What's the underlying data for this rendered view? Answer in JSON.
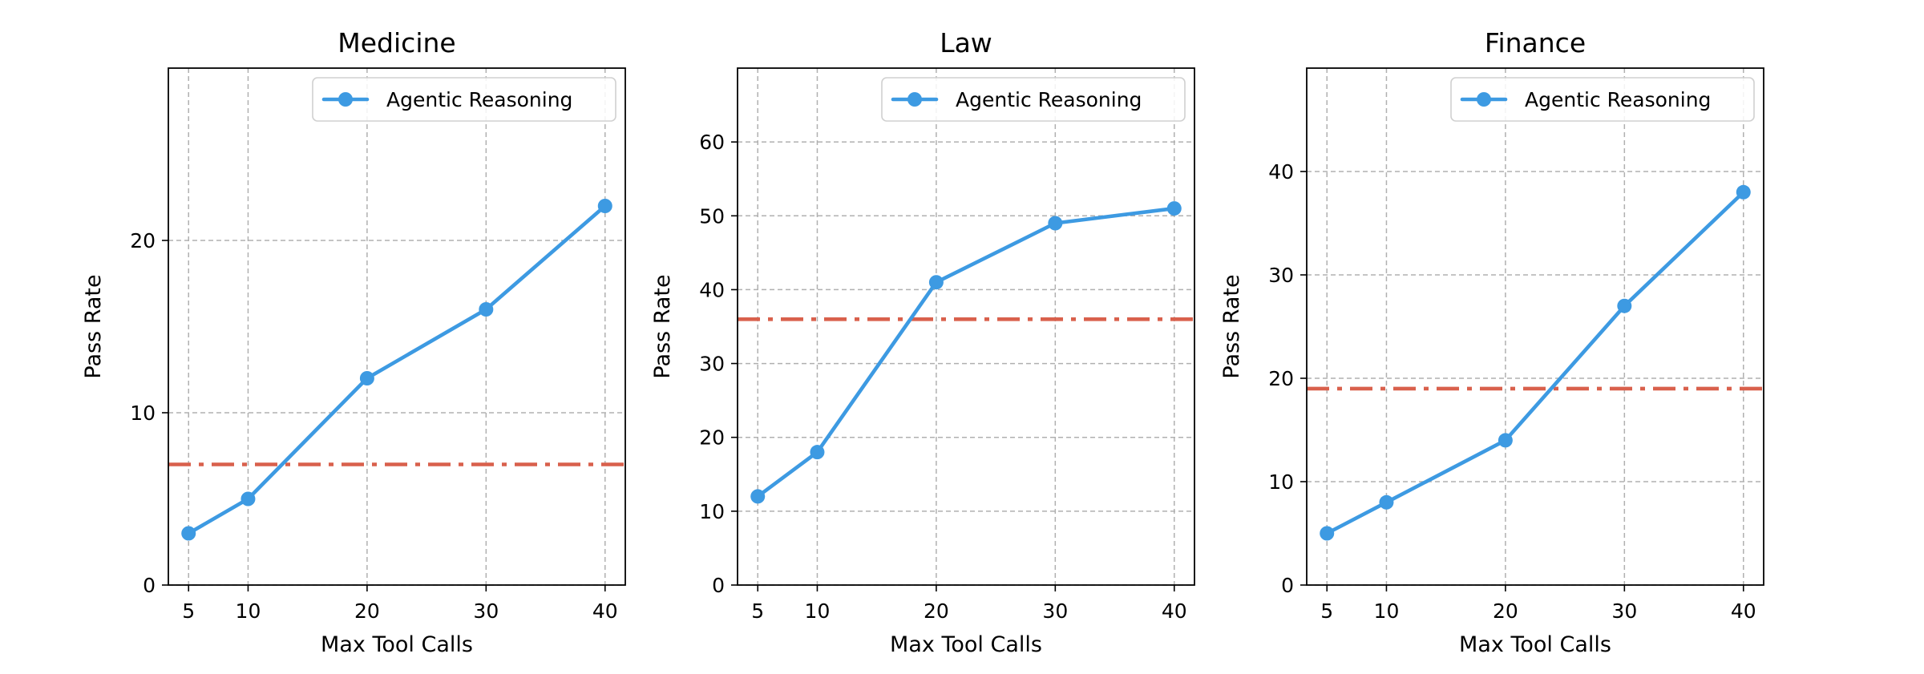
{
  "chart_data": [
    {
      "type": "line",
      "title": "Medicine",
      "xlabel": "Max Tool Calls",
      "ylabel": "Pass Rate",
      "x": [
        5,
        10,
        20,
        30,
        40
      ],
      "xlim": [
        3.3,
        41.7
      ],
      "ylim": [
        0,
        30
      ],
      "xticks": [
        5,
        10,
        20,
        30,
        40
      ],
      "yticks": [
        0,
        10,
        20
      ],
      "grid": true,
      "legend_position": "top-right",
      "series": [
        {
          "name": "Agentic Reasoning",
          "values": [
            3,
            5,
            12,
            16,
            22
          ],
          "color": "#3d9ae2",
          "marker": "circle"
        }
      ],
      "baseline": {
        "value": 7,
        "color": "#d9604c",
        "style": "dash-dot"
      }
    },
    {
      "type": "line",
      "title": "Law",
      "xlabel": "Max Tool Calls",
      "ylabel": "Pass Rate",
      "x": [
        5,
        10,
        20,
        30,
        40
      ],
      "xlim": [
        3.3,
        41.7
      ],
      "ylim": [
        0,
        70
      ],
      "xticks": [
        5,
        10,
        20,
        30,
        40
      ],
      "yticks": [
        0,
        10,
        20,
        30,
        40,
        50,
        60
      ],
      "grid": true,
      "legend_position": "top-right",
      "series": [
        {
          "name": "Agentic Reasoning",
          "values": [
            12,
            18,
            41,
            49,
            51
          ],
          "color": "#3d9ae2",
          "marker": "circle"
        }
      ],
      "baseline": {
        "value": 36,
        "color": "#d9604c",
        "style": "dash-dot"
      }
    },
    {
      "type": "line",
      "title": "Finance",
      "xlabel": "Max Tool Calls",
      "ylabel": "Pass Rate",
      "x": [
        5,
        10,
        20,
        30,
        40
      ],
      "xlim": [
        3.3,
        41.7
      ],
      "ylim": [
        0,
        50
      ],
      "xticks": [
        5,
        10,
        20,
        30,
        40
      ],
      "yticks": [
        0,
        10,
        20,
        30,
        40
      ],
      "grid": true,
      "legend_position": "top-right",
      "series": [
        {
          "name": "Agentic Reasoning",
          "values": [
            5,
            8,
            14,
            27,
            38
          ],
          "color": "#3d9ae2",
          "marker": "circle"
        }
      ],
      "baseline": {
        "value": 19,
        "color": "#d9604c",
        "style": "dash-dot"
      }
    }
  ]
}
